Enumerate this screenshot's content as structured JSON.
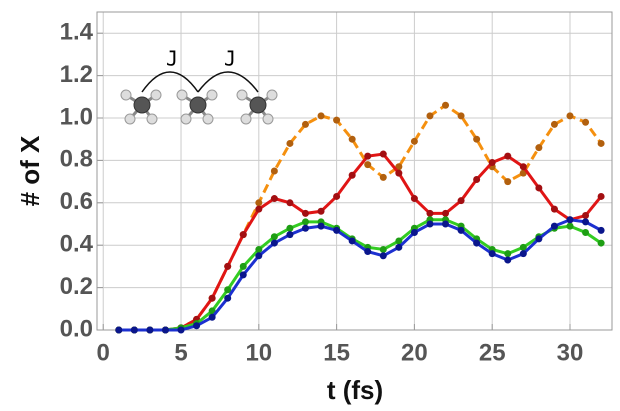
{
  "chart_data": {
    "type": "line",
    "xlabel": "t (fs)",
    "ylabel": "# of X",
    "annotations": [
      "J",
      "J"
    ],
    "x": [
      1,
      2,
      3,
      4,
      5,
      6,
      7,
      8,
      9,
      10,
      11,
      12,
      13,
      14,
      15,
      16,
      17,
      18,
      19,
      20,
      21,
      22,
      23,
      24,
      25,
      26,
      27,
      28,
      29,
      30,
      31,
      32
    ],
    "series": [
      {
        "color": "#f5900f",
        "marker_color": "#b2600e",
        "dashed": true,
        "values": [
          0,
          0,
          0,
          0,
          0.01,
          0.05,
          0.15,
          0.3,
          0.45,
          0.6,
          0.75,
          0.88,
          0.97,
          1.01,
          0.99,
          0.9,
          0.78,
          0.72,
          0.77,
          0.89,
          1.01,
          1.06,
          1.01,
          0.9,
          0.77,
          0.7,
          0.74,
          0.86,
          0.97,
          1.01,
          0.98,
          0.88
        ]
      },
      {
        "color": "#e01515",
        "marker_color": "#a30f12",
        "dashed": false,
        "values": [
          0,
          0,
          0,
          0,
          0.01,
          0.05,
          0.15,
          0.3,
          0.45,
          0.57,
          0.62,
          0.6,
          0.55,
          0.56,
          0.63,
          0.73,
          0.82,
          0.83,
          0.74,
          0.62,
          0.55,
          0.55,
          0.61,
          0.71,
          0.79,
          0.82,
          0.77,
          0.67,
          0.57,
          0.52,
          0.54,
          0.63
        ]
      },
      {
        "color": "#33cc22",
        "marker_color": "#1e9e14",
        "dashed": false,
        "values": [
          0,
          0,
          0,
          0,
          0.01,
          0.03,
          0.09,
          0.19,
          0.3,
          0.38,
          0.44,
          0.48,
          0.51,
          0.51,
          0.48,
          0.43,
          0.39,
          0.38,
          0.42,
          0.48,
          0.52,
          0.52,
          0.49,
          0.43,
          0.38,
          0.36,
          0.39,
          0.44,
          0.48,
          0.49,
          0.46,
          0.41
        ]
      },
      {
        "color": "#1c30d0",
        "marker_color": "#0a168c",
        "dashed": false,
        "values": [
          0,
          0,
          0,
          0,
          0,
          0.02,
          0.06,
          0.15,
          0.26,
          0.35,
          0.41,
          0.45,
          0.48,
          0.49,
          0.47,
          0.42,
          0.37,
          0.35,
          0.39,
          0.46,
          0.5,
          0.5,
          0.47,
          0.41,
          0.36,
          0.33,
          0.36,
          0.43,
          0.49,
          0.52,
          0.51,
          0.47
        ]
      }
    ],
    "xlim": [
      -0.4,
      32.7
    ],
    "xticks": [
      0,
      5,
      10,
      15,
      20,
      25,
      30
    ],
    "ylim": [
      0,
      1.5
    ],
    "yticks": [
      {
        "value": 0,
        "label": "0.0"
      },
      0.2,
      0.4,
      0.6,
      0.8,
      {
        "value": 1,
        "label": "1.0"
      },
      1.2,
      1.4
    ],
    "grid": true
  }
}
